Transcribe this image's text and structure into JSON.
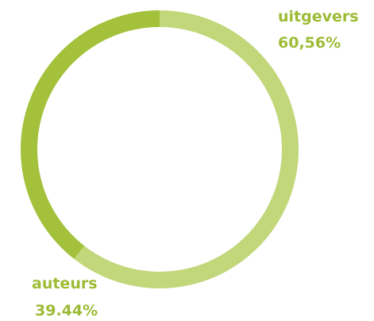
{
  "chart_data": {
    "type": "pie",
    "categories": [
      "uitgevers",
      "auteurs"
    ],
    "values": [
      60.56,
      39.44
    ],
    "value_labels": [
      "60,56%",
      "39.44%"
    ],
    "colors": [
      "#c2d67a",
      "#a3c13a"
    ]
  }
}
